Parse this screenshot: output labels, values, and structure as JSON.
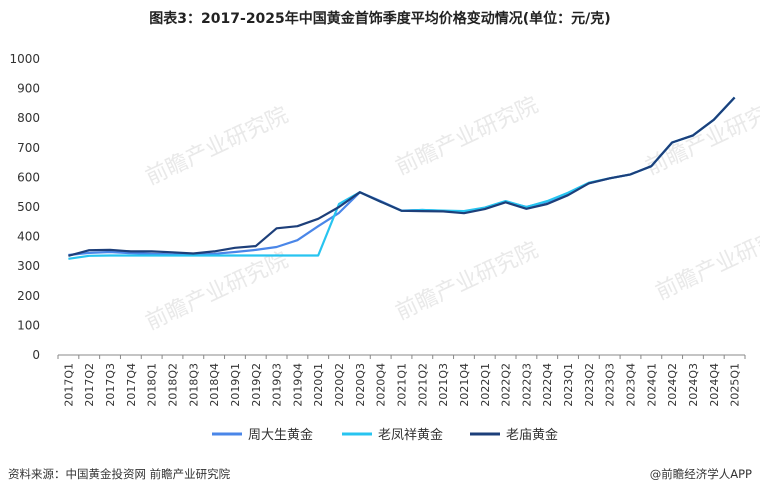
{
  "title": "图表3：2017-2025年中国黄金首饰季度平均价格变动情况(单位：元/克)",
  "footer": {
    "source": "资料来源：中国黄金投资网 前瞻产业研究院",
    "brand": "@前瞻经济学人APP"
  },
  "watermark": "前瞻产业研究院",
  "colors": {
    "s1": "#4a86e8",
    "s2": "#27c4f0",
    "s3": "#1d3f7a",
    "grid": "#d9d9d9",
    "axis": "#888888"
  },
  "chart_data": {
    "type": "line",
    "title": "图表3：2017-2025年中国黄金首饰季度平均价格变动情况(单位：元/克)",
    "xlabel": "",
    "ylabel": "",
    "ylim": [
      0,
      1000
    ],
    "yticks": [
      0,
      100,
      200,
      300,
      400,
      500,
      600,
      700,
      800,
      900,
      1000
    ],
    "grid": false,
    "legend": "bottom",
    "categories": [
      "2017Q1",
      "2017Q2",
      "2017Q3",
      "2017Q4",
      "2018Q1",
      "2018Q2",
      "2018Q3",
      "2018Q4",
      "2019Q1",
      "2019Q2",
      "2019Q3",
      "2019Q4",
      "2020Q1",
      "2020Q2",
      "2020Q3",
      "2020Q4",
      "2021Q1",
      "2021Q2",
      "2021Q3",
      "2021Q4",
      "2022Q1",
      "2022Q2",
      "2022Q3",
      "2022Q4",
      "2023Q1",
      "2023Q2",
      "2023Q3",
      "2023Q4",
      "2024Q1",
      "2024Q2",
      "2024Q3",
      "2024Q4",
      "2025Q1"
    ],
    "series": [
      {
        "name": "周大生黄金",
        "color": "#4a86e8",
        "values": [
          338,
          345,
          348,
          344,
          342,
          340,
          338,
          342,
          348,
          355,
          365,
          388,
          435,
          480,
          550,
          520,
          488,
          490,
          487,
          482,
          495,
          518,
          500,
          518,
          545,
          580,
          597,
          610,
          638,
          718,
          742,
          795,
          870
        ]
      },
      {
        "name": "老凤祥黄金",
        "color": "#27c4f0",
        "values": [
          325,
          335,
          336,
          336,
          336,
          336,
          336,
          336,
          336,
          336,
          336,
          336,
          336,
          510,
          550,
          518,
          487,
          490,
          488,
          486,
          498,
          520,
          500,
          520,
          548,
          582,
          597,
          610,
          638,
          718,
          742,
          795,
          870
        ]
      },
      {
        "name": "老庙黄金",
        "color": "#1d3f7a",
        "values": [
          335,
          354,
          355,
          350,
          350,
          347,
          343,
          350,
          362,
          368,
          428,
          435,
          460,
          500,
          550,
          518,
          487,
          486,
          485,
          479,
          493,
          516,
          494,
          510,
          540,
          580,
          597,
          610,
          638,
          718,
          742,
          795,
          870
        ]
      }
    ]
  }
}
